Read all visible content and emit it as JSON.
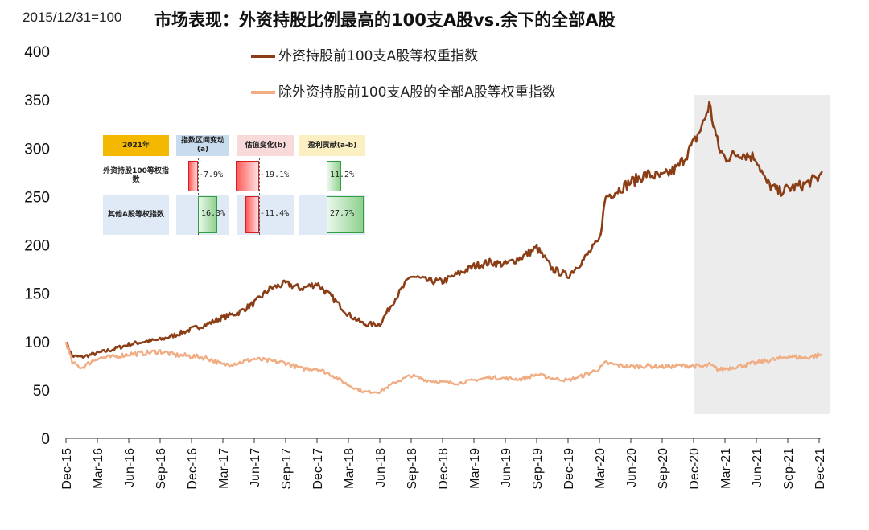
{
  "subtitle": "2015/12/31=100",
  "title": "市场表现：外资持股比例最高的100支A股vs.余下的全部A股",
  "colors": {
    "top100": "#8B3E16",
    "rest": "#F0AC82",
    "shade": "#ECECEC"
  },
  "legend": {
    "top100": "外资持股前100支A股等权重指数",
    "rest": "除外资持股前100支A股的全部A股等权重指数"
  },
  "chart_data": {
    "type": "line",
    "title": "市场表现：外资持股比例最高的100支A股vs.余下的全部A股",
    "base_note": "2015/12/31=100",
    "xlabel": "",
    "ylabel": "",
    "ylim": [
      0,
      400
    ],
    "yticks": [
      0,
      50,
      100,
      150,
      200,
      250,
      300,
      350,
      400
    ],
    "xticks": [
      "Dec-15",
      "Mar-16",
      "Jun-16",
      "Sep-16",
      "Dec-16",
      "Mar-17",
      "Jun-17",
      "Sep-17",
      "Dec-17",
      "Mar-18",
      "Jun-18",
      "Sep-18",
      "Dec-18",
      "Mar-19",
      "Jun-19",
      "Sep-19",
      "Dec-19",
      "Mar-20",
      "Jun-20",
      "Sep-20",
      "Dec-20",
      "Mar-21",
      "Jun-21",
      "Sep-21",
      "Dec-21"
    ],
    "shaded_range": {
      "start_index": 20,
      "end_index": 24.2,
      "label": "2021"
    },
    "x": [
      0,
      0.2,
      0.5,
      1,
      1.5,
      2,
      2.5,
      3,
      3.5,
      4,
      4.5,
      5,
      5.5,
      6,
      6.5,
      7,
      7.5,
      8,
      8.5,
      9,
      9.5,
      10,
      10.5,
      11,
      11.5,
      12,
      12.5,
      13,
      13.5,
      14,
      14.5,
      15,
      15.5,
      16,
      16.5,
      17,
      17.2,
      17.5,
      18,
      18.5,
      19,
      19.5,
      20,
      20.3,
      20.5,
      20.8,
      21,
      21.5,
      22,
      22.3,
      22.7,
      23,
      23.5,
      24,
      24.1
    ],
    "series": [
      {
        "name": "外资持股前100支A股等权重指数",
        "values": [
          100,
          85,
          84,
          88,
          92,
          97,
          100,
          102,
          107,
          113,
          118,
          125,
          130,
          140,
          155,
          160,
          155,
          160,
          145,
          128,
          118,
          118,
          145,
          168,
          163,
          162,
          170,
          178,
          182,
          180,
          187,
          197,
          175,
          168,
          185,
          205,
          250,
          255,
          265,
          273,
          270,
          280,
          305,
          325,
          345,
          300,
          290,
          295,
          290,
          265,
          255,
          258,
          262,
          270,
          276
        ]
      },
      {
        "name": "除外资持股前100支A股的全部A股等权重指数",
        "values": [
          100,
          78,
          73,
          83,
          84,
          87,
          88,
          90,
          86,
          85,
          83,
          76,
          78,
          82,
          80,
          78,
          72,
          72,
          65,
          55,
          48,
          48,
          58,
          65,
          60,
          58,
          57,
          60,
          63,
          62,
          61,
          66,
          62,
          60,
          65,
          72,
          78,
          76,
          74,
          75,
          74,
          75,
          75,
          74,
          76,
          71,
          72,
          75,
          78,
          80,
          82,
          85,
          83,
          86,
          86
        ]
      }
    ]
  },
  "inset": {
    "col_year": "2021年",
    "col_a": "指数区间变动(a)",
    "col_b": "估值变化(b)",
    "col_c": "盈利贡献(a-b)",
    "row1_label": "外资持股100等权指数",
    "row2_label": "其他A股等权指数",
    "row1": {
      "a": -7.9,
      "b": -19.1,
      "c": 11.2,
      "a_text": "-7.9%",
      "b_text": "-19.1%",
      "c_text": "11.2%"
    },
    "row2": {
      "a": 16.3,
      "b": -11.4,
      "c": 27.7,
      "a_text": "16.3%",
      "b_text": "-11.4%",
      "c_text": "27.7%"
    }
  }
}
